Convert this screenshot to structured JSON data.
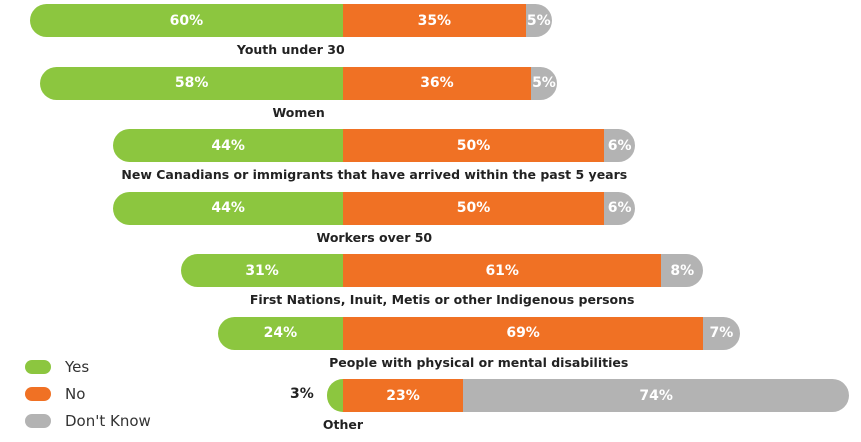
{
  "chart_data": {
    "type": "bar",
    "orientation": "horizontal",
    "stacked": true,
    "diverging": true,
    "categories": [
      "Youth under 30",
      "Women",
      "New Canadians or immigrants that have arrived within the past 5 years",
      "Workers over 50",
      "First Nations, Inuit, Metis or other Indigenous persons",
      "People with physical or mental disabilities",
      "Other"
    ],
    "series": [
      {
        "name": "Yes",
        "color": "#8cc63f",
        "values": [
          60,
          58,
          44,
          44,
          31,
          24,
          3
        ]
      },
      {
        "name": "No",
        "color": "#f07124",
        "values": [
          35,
          36,
          50,
          50,
          61,
          69,
          23
        ]
      },
      {
        "name": "Don't Know",
        "color": "#b3b3b3",
        "values": [
          5,
          5,
          6,
          6,
          8,
          7,
          74
        ]
      }
    ],
    "unit": "%",
    "legend": "bottom-left"
  }
}
